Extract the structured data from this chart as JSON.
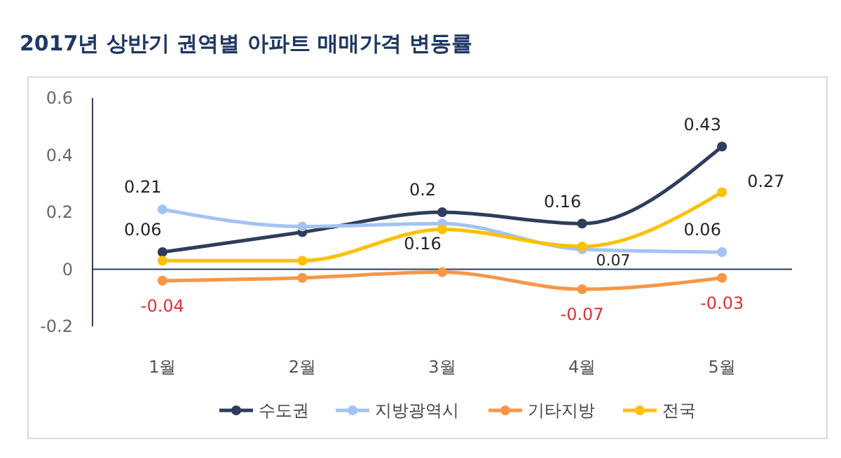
{
  "chart_data": {
    "type": "line",
    "title": "2017년 상반기 권역별 아파트 매매가격 변동률",
    "categories": [
      "1월",
      "2월",
      "3월",
      "4월",
      "5월"
    ],
    "ylim": [
      -0.2,
      0.6
    ],
    "yticks": [
      -0.2,
      0,
      0.2,
      0.4,
      0.6
    ],
    "grid": false,
    "legend": "bottom",
    "marker": "circle",
    "line_style": "solid",
    "series": [
      {
        "name": "수도권",
        "color": "#2e3d5c",
        "values": [
          0.06,
          0.13,
          0.2,
          0.16,
          0.43
        ],
        "value_labels": [
          "0.06",
          null,
          "0.2",
          "0.16",
          "0.43"
        ]
      },
      {
        "name": "지방광역시",
        "color": "#a4c2f4",
        "values": [
          0.21,
          0.15,
          0.16,
          0.07,
          0.06
        ],
        "value_labels": [
          "0.21",
          null,
          "0.16",
          "0.07",
          "0.06"
        ]
      },
      {
        "name": "기타지방",
        "color": "#f79646",
        "values": [
          -0.04,
          -0.03,
          -0.01,
          -0.07,
          -0.03
        ],
        "value_labels": [
          "-0.04",
          null,
          null,
          "-0.07",
          "-0.03"
        ]
      },
      {
        "name": "전국",
        "color": "#ffc000",
        "values": [
          0.03,
          0.03,
          0.14,
          0.08,
          0.27
        ],
        "value_labels": [
          null,
          null,
          null,
          null,
          "0.27"
        ]
      }
    ]
  }
}
